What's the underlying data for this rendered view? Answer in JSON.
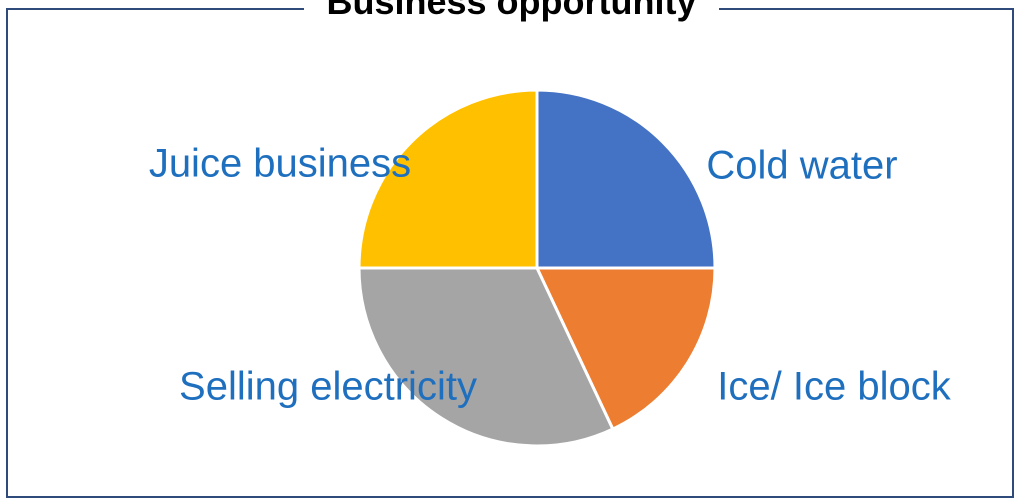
{
  "chart_data": {
    "type": "pie",
    "title": "Business opportunity",
    "slices": [
      {
        "label": "Cold water",
        "value": 25,
        "color": "#4472c4"
      },
      {
        "label": "Ice/ Ice block",
        "value": 18,
        "color": "#ed7d31"
      },
      {
        "label": "Selling electricity",
        "value": 32,
        "color": "#a5a5a5"
      },
      {
        "label": "Juice business",
        "value": 25,
        "color": "#ffc000"
      }
    ],
    "label_color": "#1f6fbf",
    "frame_color": "#2f4b7c"
  }
}
